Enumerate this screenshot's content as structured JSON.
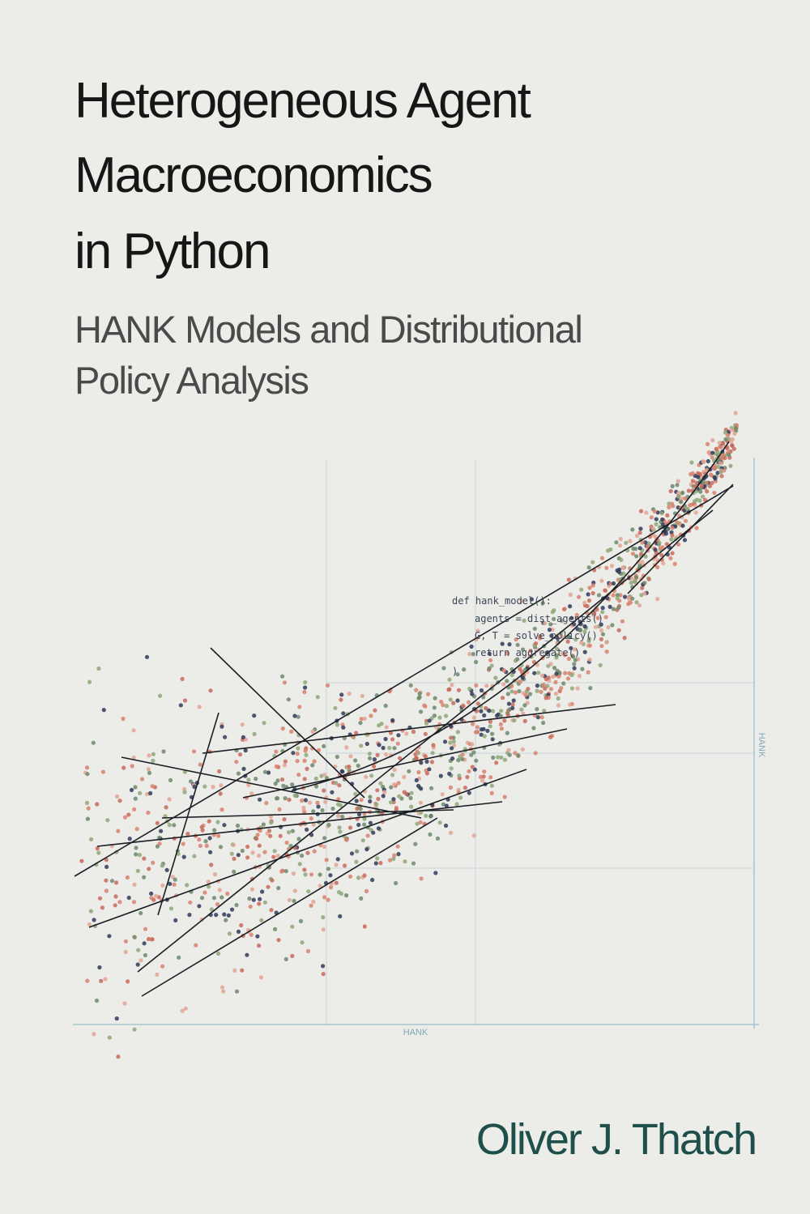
{
  "cover": {
    "title": [
      "Heterogeneous Agent",
      "Macroeconomics",
      "in Python"
    ],
    "subtitle": [
      "HANK Models and Distributional",
      "Policy Analysis"
    ],
    "code": [
      "def hank_model():",
      "agents = dist_agents()",
      "G, T = solve_policy()",
      "return aggregate()",
      ")"
    ],
    "x_axis_label": "HANK",
    "y_axis_label": "HANK",
    "author": "Oliver J. Thatch"
  }
}
